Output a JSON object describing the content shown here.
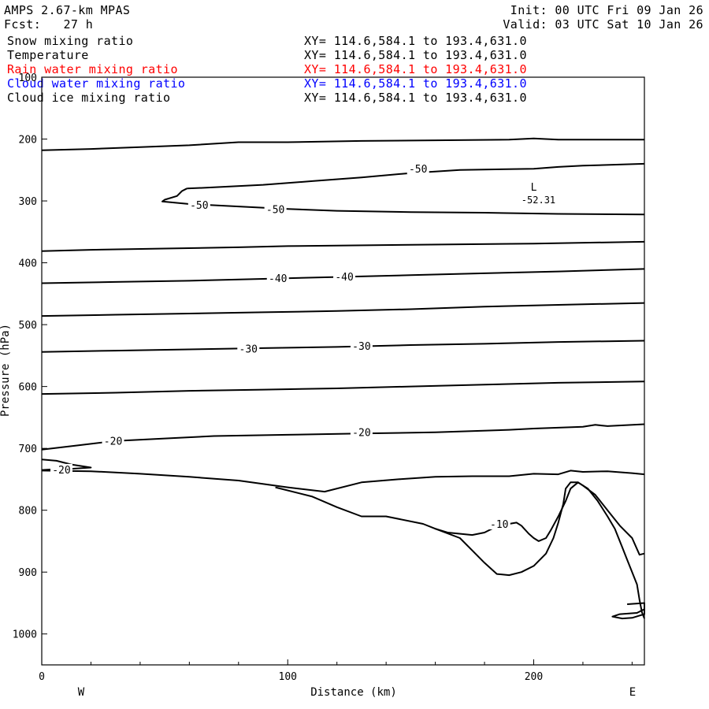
{
  "header": {
    "model": "AMPS 2.67-km MPAS",
    "init": "Init: 00 UTC Fri 09 Jan 26",
    "fcst": "Fcst:   27 h",
    "valid": "Valid: 03 UTC Sat 10 Jan 26"
  },
  "fields": [
    {
      "name": "Snow mixing ratio",
      "xy": "XY= 114.6,584.1 to 193.4,631.0",
      "color": "#000000"
    },
    {
      "name": "Temperature",
      "xy": "XY= 114.6,584.1 to 193.4,631.0",
      "color": "#000000"
    },
    {
      "name": "Rain water mixing ratio",
      "xy": "XY= 114.6,584.1 to 193.4,631.0",
      "color": "#ff0000"
    },
    {
      "name": "Cloud water mixing ratio",
      "xy": "XY= 114.6,584.1 to 193.4,631.0",
      "color": "#0000ff"
    },
    {
      "name": "Cloud ice mixing ratio",
      "xy": "XY= 114.6,584.1 to 193.4,631.0",
      "color": "#000000"
    }
  ],
  "chart_data": {
    "type": "contour",
    "xlabel": "Distance (km)",
    "ylabel": "Pressure (hPa)",
    "xlim": [
      0,
      245
    ],
    "ylim": [
      1050,
      100
    ],
    "x_ticks": [
      0,
      100,
      200
    ],
    "y_ticks": [
      100,
      200,
      300,
      400,
      500,
      600,
      700,
      800,
      900,
      1000
    ],
    "x_end_labels": {
      "left": "W",
      "right": "E"
    },
    "low_marker": {
      "label": "L",
      "value": "-52.31",
      "x": 200,
      "p": 296
    },
    "contours": [
      {
        "level": null,
        "points": [
          [
            0,
            218
          ],
          [
            20,
            216
          ],
          [
            40,
            213
          ],
          [
            60,
            210
          ],
          [
            80,
            205
          ],
          [
            100,
            205
          ],
          [
            130,
            203
          ],
          [
            160,
            202
          ],
          [
            190,
            201
          ],
          [
            200,
            199
          ],
          [
            210,
            201
          ],
          [
            230,
            201
          ],
          [
            245,
            201
          ]
        ]
      },
      {
        "level": -50,
        "points": [
          [
            59,
            280
          ],
          [
            70,
            278
          ],
          [
            90,
            274
          ],
          [
            110,
            268
          ],
          [
            130,
            262
          ],
          [
            150,
            255
          ],
          [
            170,
            250
          ],
          [
            200,
            248
          ],
          [
            210,
            245
          ],
          [
            220,
            243
          ],
          [
            245,
            240
          ]
        ]
      },
      {
        "level": -50,
        "points": [
          [
            59,
            280
          ],
          [
            57,
            284
          ],
          [
            55,
            292
          ],
          [
            50,
            298
          ],
          [
            49,
            301
          ],
          [
            60,
            305
          ],
          [
            80,
            309
          ],
          [
            100,
            313
          ],
          [
            120,
            316
          ],
          [
            150,
            318
          ],
          [
            180,
            319
          ],
          [
            210,
            321
          ],
          [
            245,
            322
          ]
        ]
      },
      {
        "level": null,
        "points": [
          [
            0,
            381
          ],
          [
            20,
            379
          ],
          [
            50,
            377
          ],
          [
            80,
            375
          ],
          [
            100,
            373
          ],
          [
            150,
            371
          ],
          [
            200,
            369
          ],
          [
            245,
            366
          ]
        ]
      },
      {
        "level": -40,
        "points": [
          [
            0,
            433
          ],
          [
            30,
            431
          ],
          [
            60,
            429
          ],
          [
            90,
            426
          ],
          [
            120,
            423
          ],
          [
            150,
            420
          ],
          [
            180,
            417
          ],
          [
            210,
            414
          ],
          [
            245,
            410
          ]
        ]
      },
      {
        "level": null,
        "points": [
          [
            0,
            486
          ],
          [
            30,
            484
          ],
          [
            60,
            482
          ],
          [
            90,
            480
          ],
          [
            120,
            478
          ],
          [
            150,
            475
          ],
          [
            180,
            471
          ],
          [
            210,
            468
          ],
          [
            245,
            465
          ]
        ]
      },
      {
        "level": -30,
        "points": [
          [
            0,
            544
          ],
          [
            30,
            542
          ],
          [
            60,
            540
          ],
          [
            90,
            538
          ],
          [
            120,
            536
          ],
          [
            150,
            533
          ],
          [
            180,
            531
          ],
          [
            210,
            528
          ],
          [
            245,
            526
          ]
        ]
      },
      {
        "level": null,
        "points": [
          [
            0,
            612
          ],
          [
            30,
            610
          ],
          [
            60,
            607
          ],
          [
            90,
            605
          ],
          [
            120,
            603
          ],
          [
            150,
            600
          ],
          [
            180,
            597
          ],
          [
            210,
            594
          ],
          [
            245,
            592
          ]
        ]
      },
      {
        "level": -20,
        "points": [
          [
            0,
            702
          ],
          [
            15,
            695
          ],
          [
            30,
            688
          ],
          [
            50,
            684
          ],
          [
            70,
            680
          ],
          [
            100,
            678
          ],
          [
            130,
            676
          ],
          [
            160,
            674
          ],
          [
            190,
            670
          ],
          [
            200,
            668
          ],
          [
            220,
            665
          ],
          [
            225,
            662
          ],
          [
            230,
            664
          ],
          [
            245,
            661
          ]
        ]
      },
      {
        "level": -20,
        "points": [
          [
            0,
            718
          ],
          [
            6,
            720
          ],
          [
            12,
            726
          ],
          [
            20,
            731
          ],
          [
            12,
            733
          ],
          [
            4,
            734
          ],
          [
            0,
            735
          ]
        ]
      },
      {
        "level": null,
        "points": [
          [
            0,
            736
          ],
          [
            20,
            737
          ],
          [
            40,
            741
          ],
          [
            60,
            746
          ],
          [
            80,
            752
          ],
          [
            100,
            763
          ],
          [
            115,
            770
          ],
          [
            130,
            755
          ],
          [
            145,
            750
          ],
          [
            160,
            746
          ],
          [
            175,
            745
          ],
          [
            190,
            745
          ],
          [
            200,
            741
          ],
          [
            210,
            742
          ],
          [
            215,
            736
          ],
          [
            220,
            738
          ],
          [
            230,
            737
          ],
          [
            240,
            740
          ],
          [
            245,
            742
          ]
        ]
      },
      {
        "level": -10,
        "points": [
          [
            95,
            763
          ],
          [
            110,
            778
          ],
          [
            120,
            795
          ],
          [
            130,
            810
          ],
          [
            140,
            810
          ],
          [
            155,
            822
          ],
          [
            160,
            830
          ],
          [
            165,
            836
          ],
          [
            175,
            840
          ],
          [
            180,
            836
          ],
          [
            185,
            826
          ],
          [
            190,
            822
          ],
          [
            193,
            820
          ],
          [
            195,
            825
          ],
          [
            198,
            838
          ],
          [
            200,
            845
          ],
          [
            202,
            850
          ],
          [
            205,
            845
          ],
          [
            207,
            832
          ],
          [
            210,
            810
          ],
          [
            213,
            785
          ],
          [
            215,
            765
          ],
          [
            218,
            755
          ],
          [
            220,
            760
          ],
          [
            225,
            775
          ],
          [
            230,
            800
          ],
          [
            235,
            825
          ],
          [
            240,
            845
          ],
          [
            243,
            872
          ],
          [
            245,
            870
          ]
        ]
      },
      {
        "level": null,
        "points": [
          [
            160,
            830
          ],
          [
            170,
            845
          ],
          [
            175,
            865
          ],
          [
            180,
            885
          ],
          [
            185,
            903
          ],
          [
            190,
            905
          ],
          [
            195,
            900
          ],
          [
            200,
            890
          ],
          [
            205,
            870
          ],
          [
            208,
            845
          ],
          [
            210,
            820
          ],
          [
            212,
            790
          ],
          [
            213,
            765
          ],
          [
            215,
            755
          ],
          [
            218,
            755
          ],
          [
            222,
            765
          ],
          [
            226,
            785
          ],
          [
            230,
            810
          ],
          [
            233,
            830
          ],
          [
            236,
            860
          ],
          [
            238,
            880
          ],
          [
            240,
            900
          ],
          [
            242,
            920
          ],
          [
            243,
            945
          ],
          [
            244,
            965
          ],
          [
            245,
            975
          ]
        ]
      },
      {
        "level": null,
        "points": [
          [
            238,
            952
          ],
          [
            245,
            950
          ],
          [
            245,
            968
          ],
          [
            240,
            974
          ],
          [
            236,
            975
          ],
          [
            232,
            972
          ],
          [
            235,
            968
          ],
          [
            242,
            966
          ],
          [
            245,
            960
          ]
        ]
      }
    ],
    "contour_labels": [
      {
        "text": "-50",
        "x": 153,
        "p": 248
      },
      {
        "text": "-50",
        "x": 64,
        "p": 306
      },
      {
        "text": "-50",
        "x": 95,
        "p": 313
      },
      {
        "text": "-40",
        "x": 96,
        "p": 425
      },
      {
        "text": "-40",
        "x": 123,
        "p": 422
      },
      {
        "text": "-30",
        "x": 84,
        "p": 539
      },
      {
        "text": "-30",
        "x": 130,
        "p": 534
      },
      {
        "text": "-20",
        "x": 29,
        "p": 688
      },
      {
        "text": "-20",
        "x": 130,
        "p": 674
      },
      {
        "text": "-20",
        "x": 8,
        "p": 734
      },
      {
        "text": "-10",
        "x": 186,
        "p": 822
      }
    ]
  }
}
